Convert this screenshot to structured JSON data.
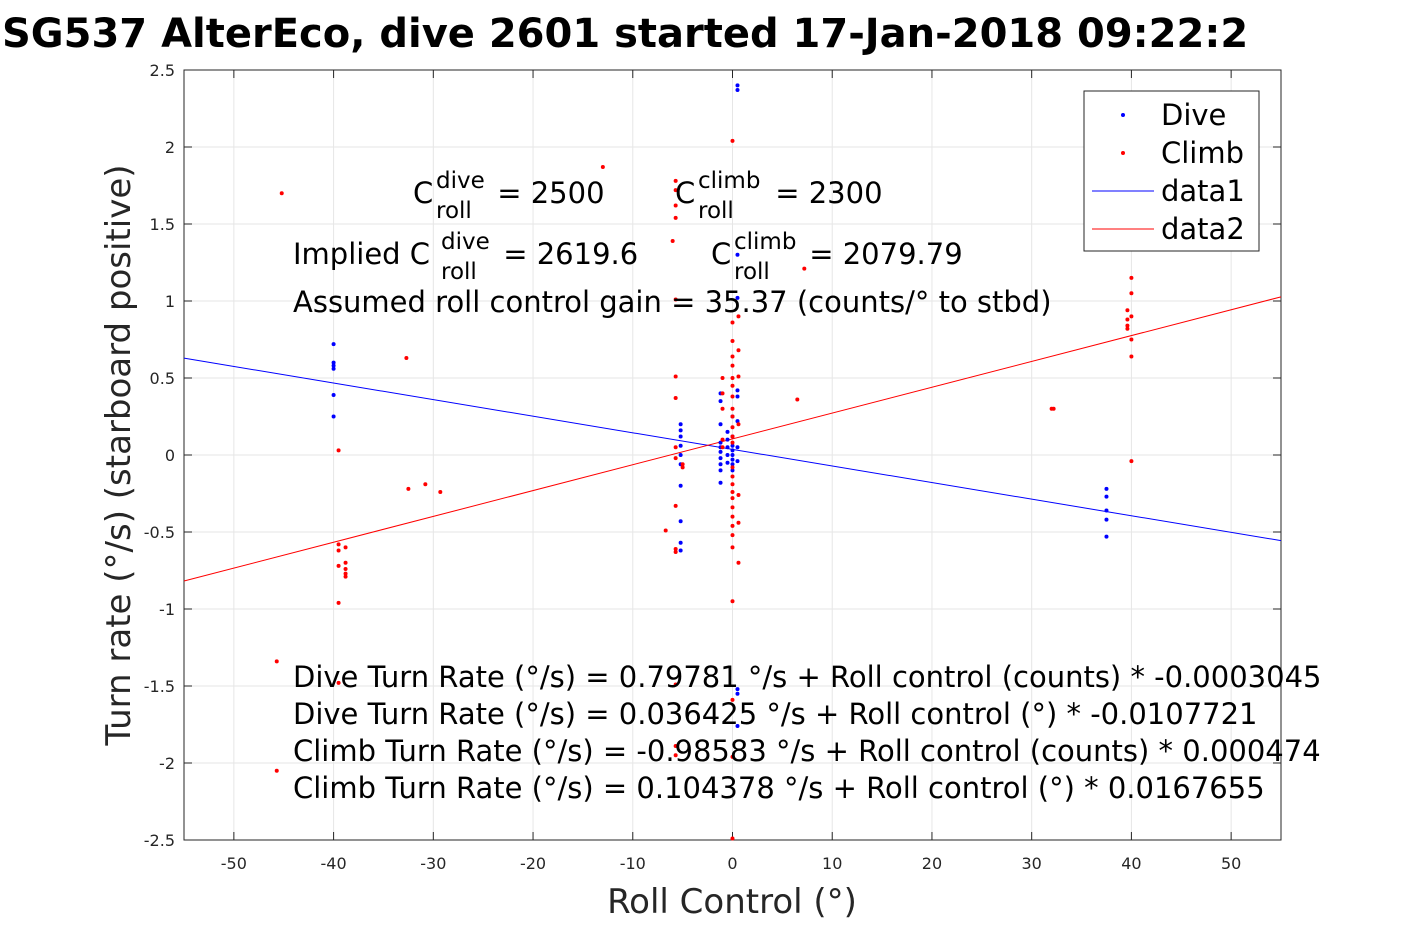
{
  "chart_data": {
    "type": "scatter",
    "title": "SG537 AlterEco, dive 2601 started 17-Jan-2018 09:22:2",
    "xlabel": "Roll Control (°)",
    "ylabel": "Turn rate (°/s) (starboard positive)",
    "xlim": [
      -55,
      55
    ],
    "ylim": [
      -2.5,
      2.5
    ],
    "x_ticks": [
      -50,
      -40,
      -30,
      -20,
      -10,
      0,
      10,
      20,
      30,
      40,
      50
    ],
    "y_ticks": [
      2.5,
      2,
      1.5,
      1,
      0.5,
      0,
      -0.5,
      -1,
      -1.5,
      -2,
      -2.5
    ],
    "x_tick_labels": [
      "-50",
      "-40",
      "-30",
      "-20",
      "-10",
      "0",
      "10",
      "20",
      "30",
      "40",
      "50"
    ],
    "y_tick_labels": [
      "2.5",
      "2",
      "1.5",
      "1",
      "0.5",
      "0",
      "-0.5",
      "-1",
      "-1.5",
      "-2",
      "-2.5"
    ],
    "grid": true,
    "legend_position": "top-right",
    "legend": [
      "Dive",
      "Climb",
      "data1",
      "data2"
    ],
    "series": [
      {
        "name": "Dive",
        "kind": "points",
        "color": "#0000ff",
        "points": [
          [
            -40,
            0.72
          ],
          [
            -40,
            0.6
          ],
          [
            -40,
            0.58
          ],
          [
            -40,
            0.56
          ],
          [
            -40,
            0.39
          ],
          [
            -40,
            0.25
          ],
          [
            -5.2,
            0.2
          ],
          [
            -5.2,
            0.16
          ],
          [
            -5.2,
            0.12
          ],
          [
            -5.2,
            0.06
          ],
          [
            -5.2,
            0.0
          ],
          [
            -5.2,
            -0.06
          ],
          [
            -5.2,
            -0.2
          ],
          [
            -5.2,
            -0.43
          ],
          [
            -5.2,
            -0.57
          ],
          [
            -5.2,
            -0.62
          ],
          [
            -1.2,
            0.4
          ],
          [
            -1.2,
            0.35
          ],
          [
            -1.2,
            0.2
          ],
          [
            -1.2,
            0.08
          ],
          [
            -1.2,
            0.05
          ],
          [
            -1.2,
            0.02
          ],
          [
            -1.2,
            -0.02
          ],
          [
            -1.2,
            -0.06
          ],
          [
            -1.2,
            -0.1
          ],
          [
            -1.2,
            -0.18
          ],
          [
            -0.5,
            0.15
          ],
          [
            -0.5,
            0.1
          ],
          [
            -0.5,
            0.05
          ],
          [
            -0.5,
            0.0
          ],
          [
            -0.5,
            -0.05
          ],
          [
            0,
            0.25
          ],
          [
            0,
            0.12
          ],
          [
            0,
            0.06
          ],
          [
            0,
            0.03
          ],
          [
            0,
            0.0
          ],
          [
            0,
            -0.03
          ],
          [
            0,
            -0.06
          ],
          [
            0,
            -0.1
          ],
          [
            0.5,
            2.4
          ],
          [
            0.5,
            2.37
          ],
          [
            0.5,
            1.3
          ],
          [
            0.5,
            1.02
          ],
          [
            0.5,
            0.42
          ],
          [
            0.5,
            0.38
          ],
          [
            0.5,
            0.22
          ],
          [
            0.5,
            0.05
          ],
          [
            0.5,
            -0.04
          ],
          [
            0.5,
            -1.52
          ],
          [
            0.5,
            -1.55
          ],
          [
            0.5,
            -1.76
          ],
          [
            37.5,
            -0.22
          ],
          [
            37.5,
            -0.27
          ],
          [
            37.5,
            -0.36
          ],
          [
            37.5,
            -0.42
          ],
          [
            37.5,
            -0.53
          ]
        ]
      },
      {
        "name": "Climb",
        "kind": "points",
        "color": "#ff0000",
        "points": [
          [
            -45.2,
            1.7
          ],
          [
            -45.7,
            -1.34
          ],
          [
            -45.7,
            -2.05
          ],
          [
            -39.5,
            0.03
          ],
          [
            -39.5,
            -0.58
          ],
          [
            -39.5,
            -0.62
          ],
          [
            -39.5,
            -0.72
          ],
          [
            -39.5,
            -0.96
          ],
          [
            -39.5,
            -1.48
          ],
          [
            -38.8,
            -0.6
          ],
          [
            -38.8,
            -0.7
          ],
          [
            -38.8,
            -0.74
          ],
          [
            -38.8,
            -0.77
          ],
          [
            -38.8,
            -0.79
          ],
          [
            -32.7,
            0.63
          ],
          [
            -32.5,
            -0.22
          ],
          [
            -30.8,
            -0.19
          ],
          [
            -29.3,
            -0.24
          ],
          [
            -13,
            1.87
          ],
          [
            -6.7,
            -0.49
          ],
          [
            -6,
            1.39
          ],
          [
            -5.7,
            1.78
          ],
          [
            -5.7,
            1.72
          ],
          [
            -5.7,
            1.62
          ],
          [
            -5.7,
            1.54
          ],
          [
            -5.7,
            1.01
          ],
          [
            -5.7,
            0.51
          ],
          [
            -5.7,
            0.37
          ],
          [
            -5.7,
            0.05
          ],
          [
            -5.7,
            -0.02
          ],
          [
            -5.7,
            -0.33
          ],
          [
            -5.7,
            -0.61
          ],
          [
            -5.7,
            -0.63
          ],
          [
            -5.7,
            -1.49
          ],
          [
            -5.7,
            -1.89
          ],
          [
            -5.7,
            -1.95
          ],
          [
            -5.0,
            -0.06
          ],
          [
            -5.0,
            -0.08
          ],
          [
            -1.0,
            0.5
          ],
          [
            -1.0,
            0.4
          ],
          [
            -1.0,
            0.3
          ],
          [
            -1.0,
            0.1
          ],
          [
            -1.0,
            0.05
          ],
          [
            0,
            2.04
          ],
          [
            0,
            0.86
          ],
          [
            0,
            0.74
          ],
          [
            0,
            0.64
          ],
          [
            0,
            0.58
          ],
          [
            0,
            0.5
          ],
          [
            0,
            0.45
          ],
          [
            0,
            0.38
          ],
          [
            0,
            0.3
          ],
          [
            0,
            0.25
          ],
          [
            0,
            0.18
          ],
          [
            0,
            0.12
          ],
          [
            0,
            0.08
          ],
          [
            0,
            -0.08
          ],
          [
            0,
            -0.14
          ],
          [
            0,
            -0.19
          ],
          [
            0,
            -0.24
          ],
          [
            0,
            -0.28
          ],
          [
            0,
            -0.34
          ],
          [
            0,
            -0.4
          ],
          [
            0,
            -0.46
          ],
          [
            0,
            -0.52
          ],
          [
            0,
            -0.6
          ],
          [
            0,
            -0.95
          ],
          [
            0,
            -1.59
          ],
          [
            0,
            -1.96
          ],
          [
            0,
            -2.49
          ],
          [
            0.6,
            0.9
          ],
          [
            0.6,
            0.68
          ],
          [
            0.6,
            0.51
          ],
          [
            0.6,
            0.2
          ],
          [
            0.6,
            -0.26
          ],
          [
            0.6,
            -0.44
          ],
          [
            0.6,
            -0.7
          ],
          [
            6.5,
            0.36
          ],
          [
            7.2,
            1.21
          ],
          [
            32,
            0.3
          ],
          [
            32.2,
            0.3
          ],
          [
            39.6,
            0.94
          ],
          [
            39.6,
            0.88
          ],
          [
            39.6,
            0.84
          ],
          [
            39.6,
            0.82
          ],
          [
            40,
            1.15
          ],
          [
            40,
            1.05
          ],
          [
            40,
            0.9
          ],
          [
            40,
            0.75
          ],
          [
            40,
            0.64
          ],
          [
            40,
            -0.04
          ]
        ]
      },
      {
        "name": "data1",
        "kind": "line",
        "color": "#0000ff",
        "points": [
          [
            -55,
            0.629
          ],
          [
            55,
            -0.556
          ]
        ]
      },
      {
        "name": "data2",
        "kind": "line",
        "color": "#ff0000",
        "points": [
          [
            -55,
            -0.818
          ],
          [
            55,
            1.027
          ]
        ]
      }
    ],
    "annotations": {
      "c_dive": {
        "base": "C",
        "sup": "dive",
        "sub": "roll",
        "rest": " = 2500"
      },
      "c_climb": {
        "base": "C",
        "sup": "climb",
        "sub": "roll",
        "rest": " = 2300"
      },
      "implied_prefix": "Implied C",
      "implied_dive_sup": "dive",
      "implied_dive_sub": "roll",
      "implied_dive_rest": " = 2619.6",
      "implied_climb": {
        "base": "C",
        "sup": "climb",
        "sub": "roll",
        "rest": " = 2079.79"
      },
      "gain": "Assumed roll control gain = 35.37 (counts/° to stbd)",
      "eq_lines": [
        "Dive Turn Rate (°/s) = 0.79781 °/s + Roll control (counts) * -0.0003045",
        "Dive Turn Rate (°/s) = 0.036425 °/s + Roll control (°) * -0.0107721",
        "Climb Turn Rate (°/s) = -0.98583 °/s + Roll control (counts) * 0.000474",
        "Climb Turn Rate (°/s) = 0.104378 °/s + Roll control (°) * 0.0167655"
      ]
    }
  }
}
